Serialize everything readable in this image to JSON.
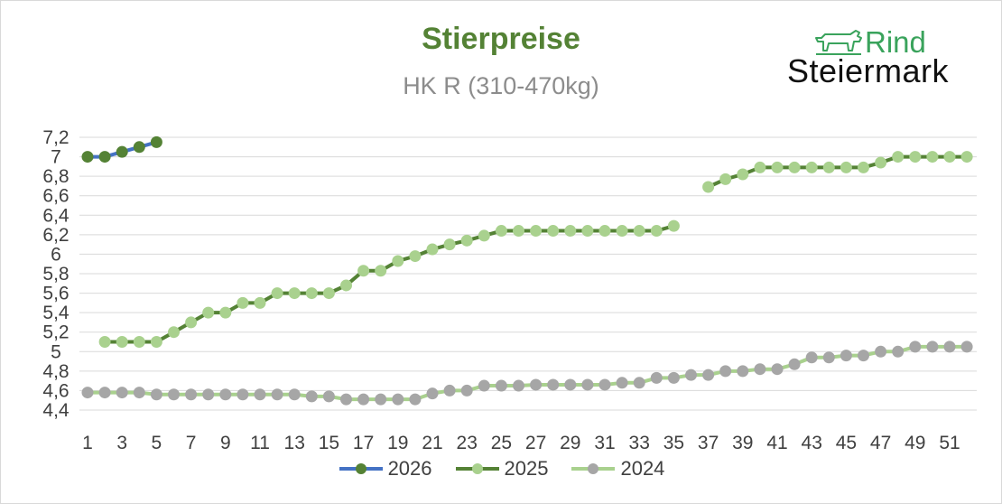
{
  "header": {
    "title": "Stierpreise",
    "subtitle": "HK R (310-470kg)"
  },
  "logo": {
    "line1": "Rind",
    "line2": "Steiermark",
    "icon": "cow-icon"
  },
  "colors": {
    "s2026_line": "#4472c4",
    "s2026_marker": "#548235",
    "s2025_line": "#548235",
    "s2025_marker": "#a9d18e",
    "s2024_line": "#a9d18e",
    "s2024_marker": "#a6a6a6",
    "title": "#548235",
    "subtitle": "#8c8c8c",
    "grid": "#d9d9d9",
    "tick_text": "#404040"
  },
  "chart_data": {
    "type": "line",
    "title": "Stierpreise",
    "subtitle": "HK R (310-470kg)",
    "xlabel": "",
    "ylabel": "",
    "x_range": [
      1,
      52
    ],
    "x_tick_labels": [
      "1",
      "3",
      "5",
      "7",
      "9",
      "11",
      "13",
      "15",
      "17",
      "19",
      "21",
      "23",
      "25",
      "27",
      "29",
      "31",
      "33",
      "35",
      "37",
      "39",
      "41",
      "43",
      "45",
      "47",
      "49",
      "51"
    ],
    "ylim": [
      4.4,
      7.2
    ],
    "y_tick_labels": [
      "7,2",
      "7",
      "6,8",
      "6,6",
      "6,4",
      "6,2",
      "6",
      "5,8",
      "5,6",
      "5,4",
      "5,2",
      "5",
      "4,8",
      "4,6",
      "4,4"
    ],
    "grid": true,
    "legend_position": "bottom",
    "series": [
      {
        "name": "2026",
        "x": [
          1,
          2,
          3,
          4,
          5
        ],
        "values": [
          7.0,
          7.0,
          7.05,
          7.1,
          7.15
        ]
      },
      {
        "name": "2025",
        "x": [
          2,
          3,
          4,
          5,
          6,
          7,
          8,
          9,
          10,
          11,
          12,
          13,
          14,
          15,
          16,
          17,
          18,
          19,
          20,
          21,
          22,
          23,
          24,
          25,
          26,
          27,
          28,
          29,
          30,
          31,
          32,
          33,
          34,
          35,
          37,
          38,
          39,
          40,
          41,
          42,
          43,
          44,
          45,
          46,
          47,
          48,
          49,
          50,
          51,
          52
        ],
        "values": [
          5.1,
          5.1,
          5.1,
          5.1,
          5.2,
          5.3,
          5.4,
          5.4,
          5.5,
          5.5,
          5.6,
          5.6,
          5.6,
          5.6,
          5.68,
          5.83,
          5.83,
          5.93,
          5.98,
          6.05,
          6.1,
          6.14,
          6.19,
          6.24,
          6.24,
          6.24,
          6.24,
          6.24,
          6.24,
          6.24,
          6.24,
          6.24,
          6.24,
          6.29,
          6.69,
          6.77,
          6.82,
          6.89,
          6.89,
          6.89,
          6.89,
          6.89,
          6.89,
          6.89,
          6.94,
          7.0,
          7.0,
          7.0,
          7.0,
          7.0
        ]
      },
      {
        "name": "2024",
        "x": [
          1,
          2,
          3,
          4,
          5,
          6,
          7,
          8,
          9,
          10,
          11,
          12,
          13,
          14,
          15,
          16,
          17,
          18,
          19,
          20,
          21,
          22,
          23,
          24,
          25,
          26,
          27,
          28,
          29,
          30,
          31,
          32,
          33,
          34,
          35,
          36,
          37,
          38,
          39,
          40,
          41,
          42,
          43,
          44,
          45,
          46,
          47,
          48,
          49,
          50,
          51,
          52
        ],
        "values": [
          4.58,
          4.58,
          4.58,
          4.58,
          4.56,
          4.56,
          4.56,
          4.56,
          4.56,
          4.56,
          4.56,
          4.56,
          4.56,
          4.54,
          4.54,
          4.51,
          4.51,
          4.51,
          4.51,
          4.51,
          4.57,
          4.6,
          4.6,
          4.65,
          4.65,
          4.65,
          4.66,
          4.66,
          4.66,
          4.66,
          4.66,
          4.68,
          4.68,
          4.73,
          4.73,
          4.76,
          4.76,
          4.8,
          4.8,
          4.82,
          4.82,
          4.87,
          4.94,
          4.94,
          4.96,
          4.96,
          5.0,
          5.0,
          5.05,
          5.05,
          5.05,
          5.05
        ]
      }
    ]
  }
}
